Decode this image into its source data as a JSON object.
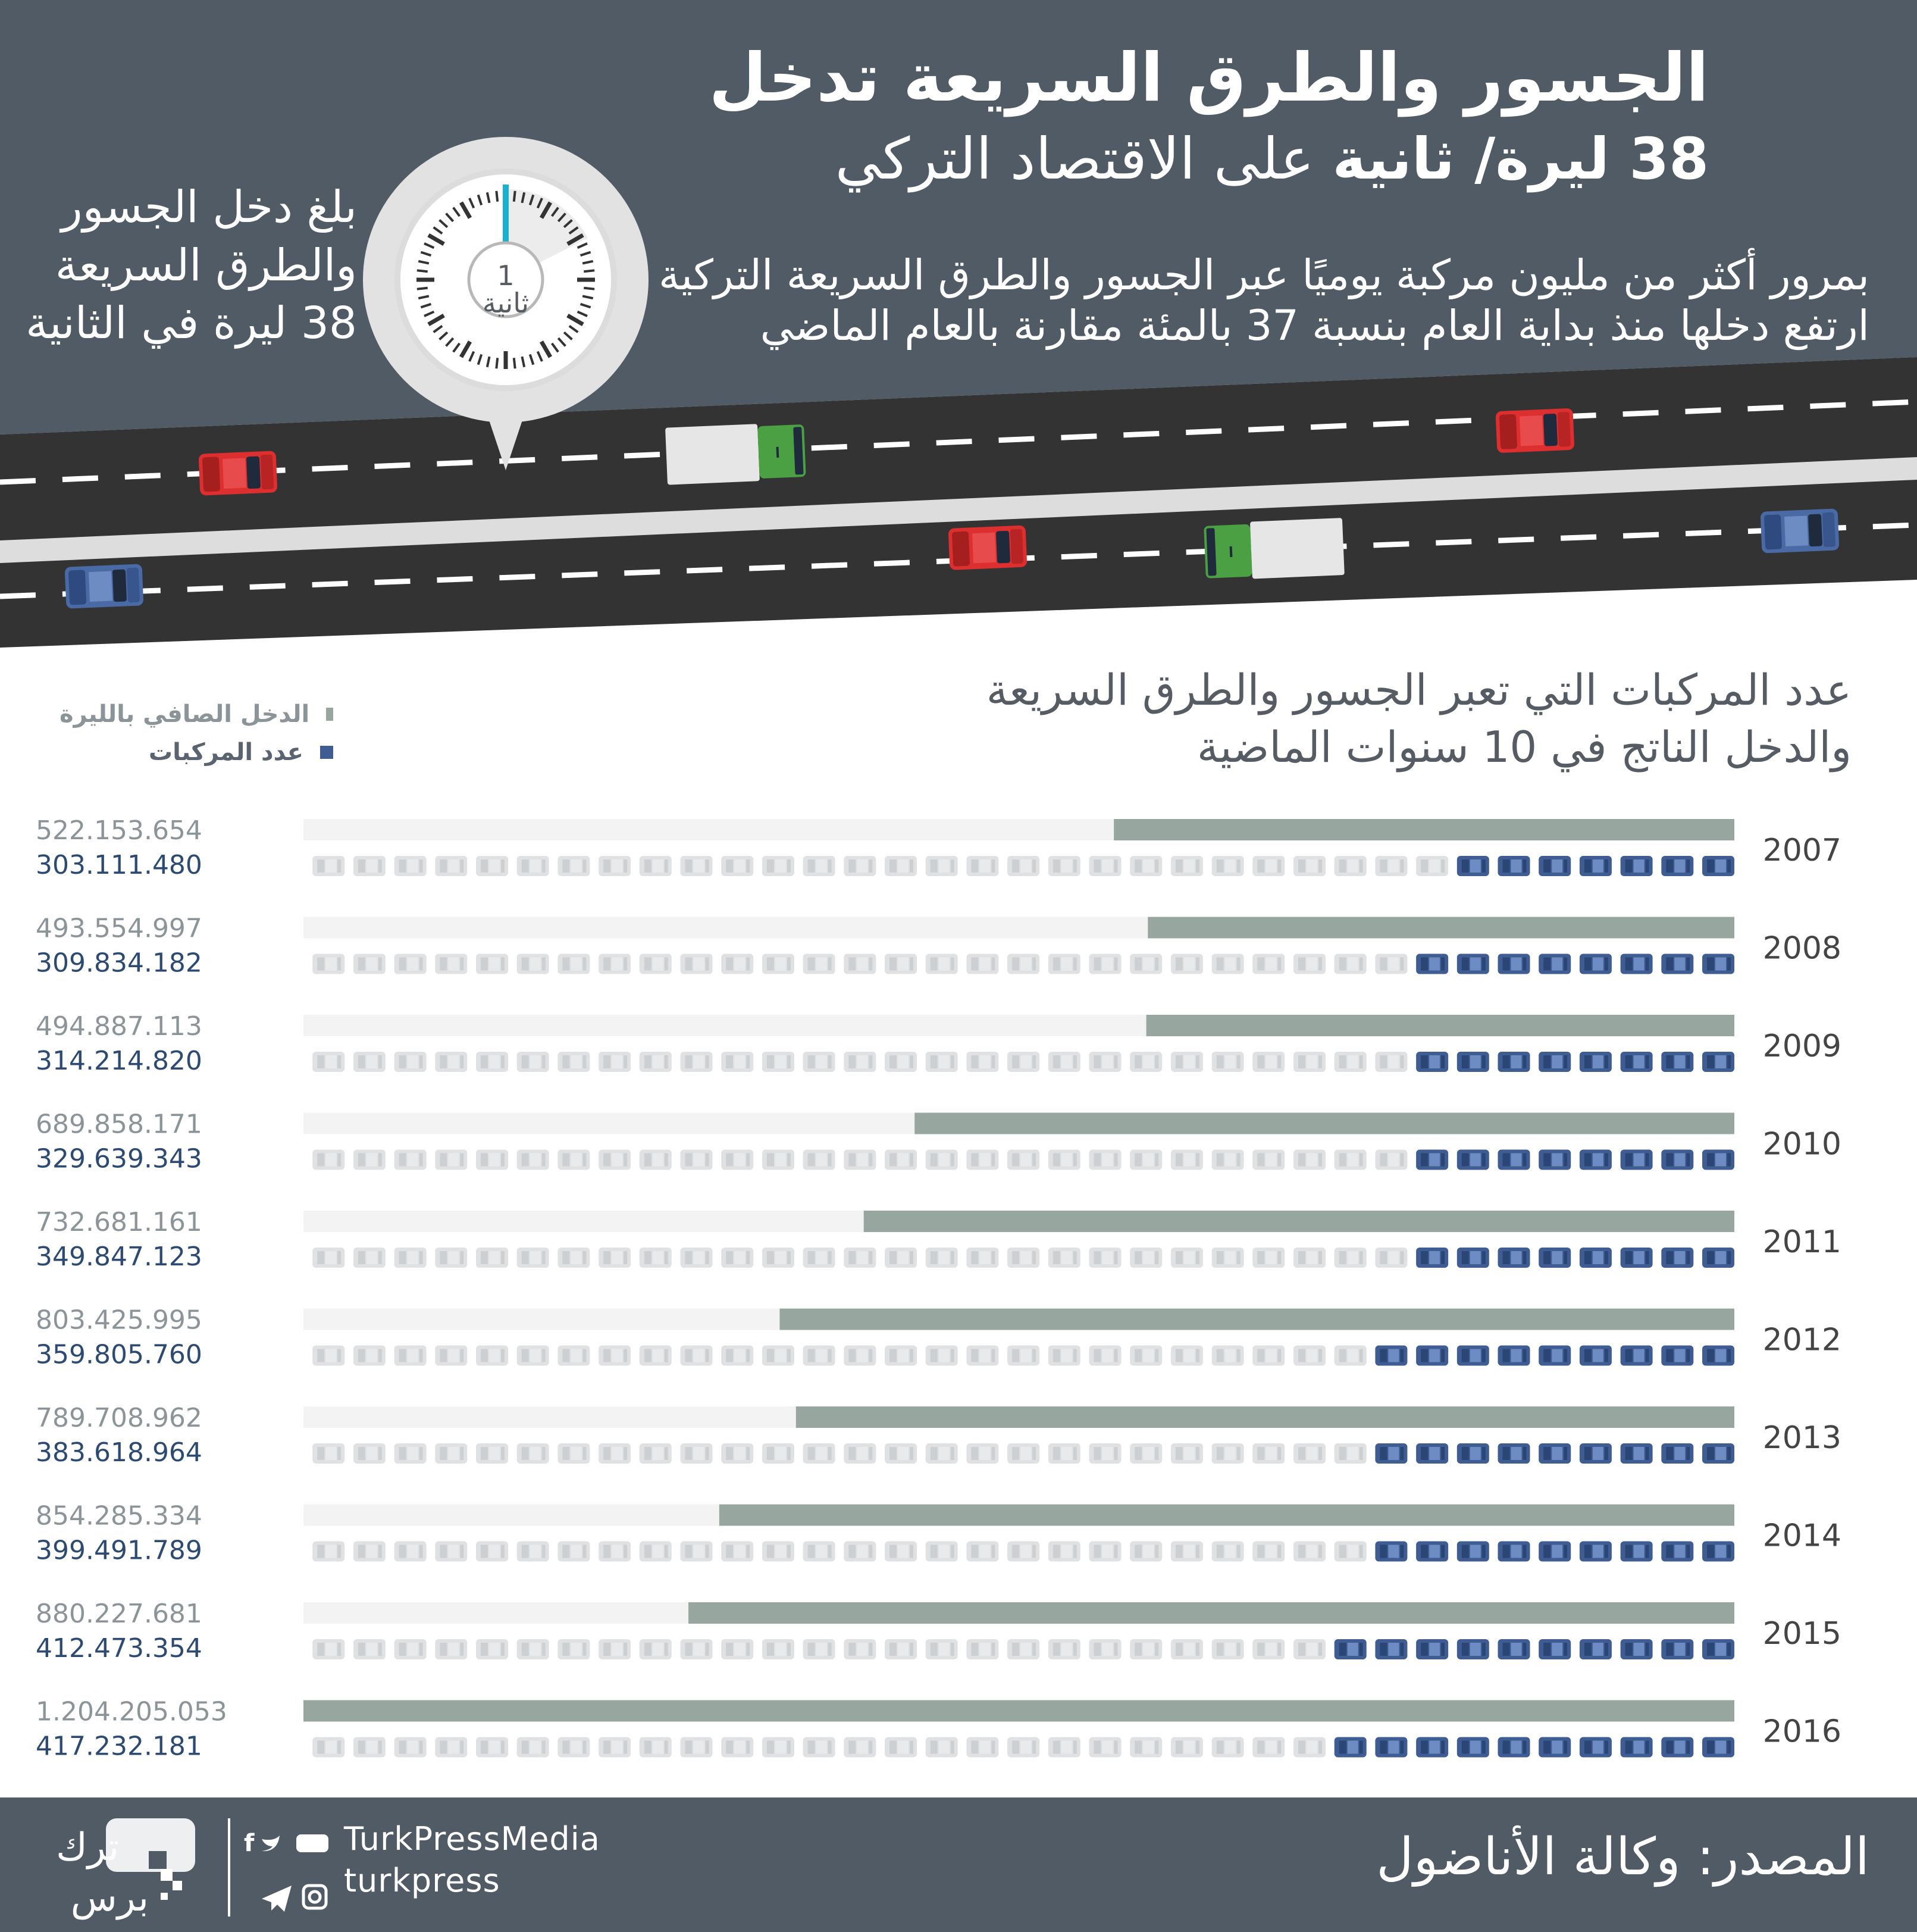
{
  "header": {
    "title_line1": "الجسور والطرق السريعة تدخل",
    "title_line2_bold": "38 ليرة/ ثانية",
    "title_line2_rest": "على الاقتصاد التركي",
    "subtitle": [
      "بمرور أكثر من مليون مركبة يوميًا عبر الجسور والطرق السريعة التركية",
      "ارتفع دخلها منذ بداية العام بنسبة 37 بالمئة مقارنة بالعام الماضي"
    ],
    "side_text": "بلغ دخل الجسور والطرق السريعة 38 ليرة في الثانية",
    "stopwatch_number": "1",
    "stopwatch_unit": "ثانية"
  },
  "colors": {
    "header_bg": "#505b65",
    "road": "#333333",
    "income": "#97a69f",
    "vehicles": "#3f5d93",
    "track": "#f3f3f3",
    "ghost": "#dfe1e3",
    "income_label": "#8b9599",
    "vehicle_label": "#2d4a72",
    "car_red": "#dd2f2f",
    "car_blue": "#4a6aa5",
    "truck_green": "#4aa042"
  },
  "chart_data": {
    "type": "bar",
    "orientation": "horizontal",
    "title": "عدد المركبات التي تعبر الجسور والطرق السريعة والدخل الناتج في 10 سنوات الماضية",
    "title_lines": [
      "عدد المركبات التي تعبر الجسور والطرق السريعة",
      "والدخل الناتج في 10 سنوات الماضية"
    ],
    "categories": [
      "2007",
      "2008",
      "2009",
      "2010",
      "2011",
      "2012",
      "2013",
      "2014",
      "2015",
      "2016"
    ],
    "series": [
      {
        "name": "الدخل الصافي بالليرة",
        "values": [
          522153654,
          493554997,
          494887113,
          689858171,
          732681161,
          803425995,
          789708962,
          854285334,
          880227681,
          1204205053
        ],
        "labels": [
          "522.153.654",
          "493.554.997",
          "494.887.113",
          "689.858.171",
          "732.681.161",
          "803.425.995",
          "789.708.962",
          "854.285.334",
          "880.227.681",
          "1.204.205.053"
        ]
      },
      {
        "name": "عدد المركبات",
        "values": [
          303111480,
          309834182,
          314214820,
          329639343,
          349847123,
          359805760,
          383618964,
          399491789,
          412473354,
          417232181
        ],
        "labels": [
          "303.111.480",
          "309.834.182",
          "314.214.820",
          "329.639.343",
          "349.847.123",
          "359.805.760",
          "383.618.964",
          "399.491.789",
          "412.473.354",
          "417.232.181"
        ],
        "icon_count": [
          7,
          8,
          8,
          8,
          8,
          9,
          9,
          9,
          10,
          10
        ]
      }
    ],
    "legend": {
      "position": "top-left"
    }
  },
  "footer": {
    "source": "المصدر: وكالة الأناضول",
    "brand": "TurkPressMedia",
    "handle": "turkpress",
    "logo_text_1": "ترك",
    "logo_text_2": "برس",
    "social_icons": [
      "facebook-icon",
      "twitter-icon",
      "youtube-icon",
      "telegram-icon",
      "instagram-icon"
    ]
  }
}
